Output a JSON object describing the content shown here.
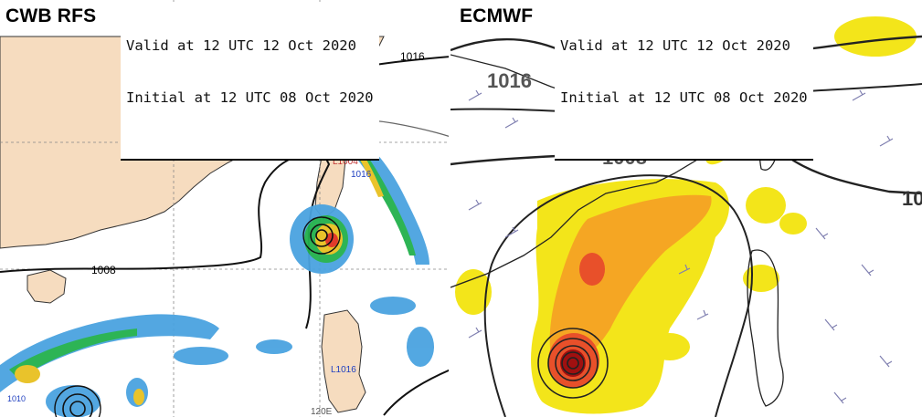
{
  "left_panel": {
    "model_name": "CWB RFS",
    "valid_line": "Valid at 12 UTC 12 Oct 2020",
    "initial_line": "Initial at 12 UTC 08 Oct 2020",
    "isobar_labels": [
      "1016",
      "1008"
    ],
    "station_labels": [
      "L1004",
      "1016",
      "L1016",
      "1010",
      "120E"
    ],
    "colors": {
      "land": "#f6dcbf",
      "sea": "#ffffff",
      "rain_light": "#4aa3e0",
      "rain_mid": "#22b14c",
      "rain_high": "#e8c020",
      "rain_extreme": "#e03020"
    }
  },
  "right_panel": {
    "model_name": "ECMWF",
    "valid_line": "Valid at 12 UTC 12 Oct 2020",
    "initial_line": "Initial at 12 UTC 08 Oct 2020",
    "isobar_labels": [
      "1016",
      "1008",
      "10"
    ],
    "colors": {
      "shade_low": "#f3e51a",
      "shade_mid": "#f5a623",
      "shade_high": "#e8502a",
      "shade_core": "#a01010",
      "wind_barb": "#7f7fb0"
    }
  }
}
